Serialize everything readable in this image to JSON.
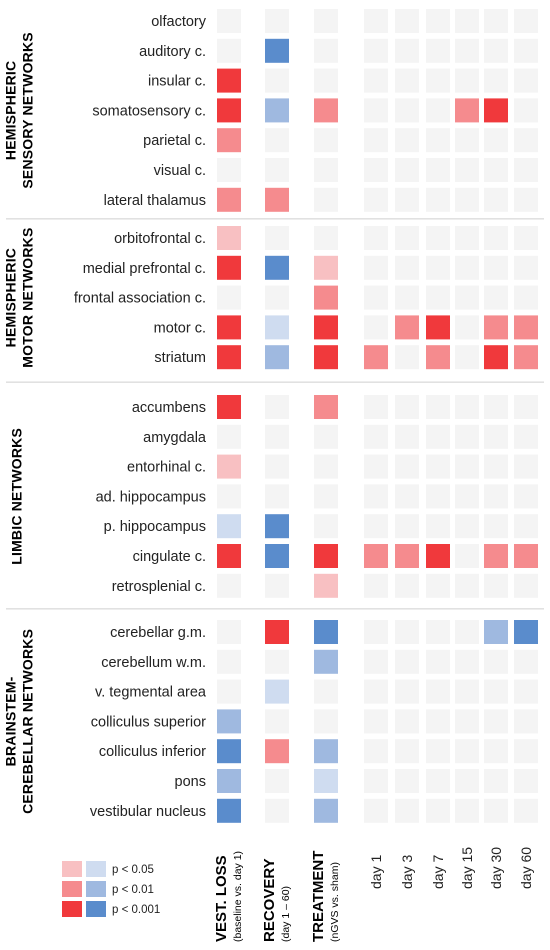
{
  "chart_data": {
    "type": "heatmap",
    "columns": [
      {
        "label": "VEST. LOSS",
        "sublabel": "(baseline vs. day 1)",
        "style": "bold"
      },
      {
        "label": "RECOVERY",
        "sublabel": "(day 1 – 60)",
        "style": "bold"
      },
      {
        "label": "TREATMENT",
        "sublabel": "(nGVS vs. sham)",
        "style": "bold"
      },
      {
        "label": "day 1",
        "sublabel": "",
        "style": "normal"
      },
      {
        "label": "day 3",
        "sublabel": "",
        "style": "normal"
      },
      {
        "label": "day 7",
        "sublabel": "",
        "style": "normal"
      },
      {
        "label": "day 15",
        "sublabel": "",
        "style": "normal"
      },
      {
        "label": "day 30",
        "sublabel": "",
        "style": "normal"
      },
      {
        "label": "day 60",
        "sublabel": "",
        "style": "normal"
      }
    ],
    "groups": [
      {
        "label": [
          "HEMISPHERIC",
          "SENSORY NETWORKS"
        ],
        "rows": [
          {
            "label": "olfactory",
            "values": [
              0,
              0,
              0,
              0,
              0,
              0,
              0,
              0,
              0
            ]
          },
          {
            "label": "auditory c.",
            "values": [
              0,
              -3,
              0,
              0,
              0,
              0,
              0,
              0,
              0
            ]
          },
          {
            "label": "insular c.",
            "values": [
              3,
              0,
              0,
              0,
              0,
              0,
              0,
              0,
              0
            ]
          },
          {
            "label": "somatosensory c.",
            "values": [
              3,
              -2,
              2,
              0,
              0,
              0,
              2,
              3,
              0
            ]
          },
          {
            "label": "parietal c.",
            "values": [
              2,
              0,
              0,
              0,
              0,
              0,
              0,
              0,
              0
            ]
          },
          {
            "label": "visual c.",
            "values": [
              0,
              0,
              0,
              0,
              0,
              0,
              0,
              0,
              0
            ]
          },
          {
            "label": "lateral thalamus",
            "values": [
              2,
              2,
              0,
              0,
              0,
              0,
              0,
              0,
              0
            ]
          }
        ]
      },
      {
        "label": [
          "HEMISPHERIC",
          "MOTOR NETWORKS"
        ],
        "rows": [
          {
            "label": "orbitofrontal c.",
            "values": [
              1,
              0,
              0,
              0,
              0,
              0,
              0,
              0,
              0
            ]
          },
          {
            "label": "medial prefrontal c.",
            "values": [
              3,
              -3,
              1,
              0,
              0,
              0,
              0,
              0,
              0
            ]
          },
          {
            "label": "frontal association c.",
            "values": [
              0,
              0,
              2,
              0,
              0,
              0,
              0,
              0,
              0
            ]
          },
          {
            "label": "motor c.",
            "values": [
              3,
              -1,
              3,
              0,
              2,
              3,
              0,
              2,
              2
            ]
          },
          {
            "label": "striatum",
            "values": [
              3,
              -2,
              3,
              2,
              0,
              2,
              0,
              3,
              2
            ]
          }
        ]
      },
      {
        "label": [
          "LIMBIC NETWORKS"
        ],
        "rows": [
          {
            "label": "accumbens",
            "values": [
              3,
              0,
              2,
              0,
              0,
              0,
              0,
              0,
              0
            ]
          },
          {
            "label": "amygdala",
            "values": [
              0,
              0,
              0,
              0,
              0,
              0,
              0,
              0,
              0
            ]
          },
          {
            "label": "entorhinal c.",
            "values": [
              1,
              0,
              0,
              0,
              0,
              0,
              0,
              0,
              0
            ]
          },
          {
            "label": "ad. hippocampus",
            "values": [
              0,
              0,
              0,
              0,
              0,
              0,
              0,
              0,
              0
            ]
          },
          {
            "label": "p. hippocampus",
            "values": [
              -1,
              -3,
              0,
              0,
              0,
              0,
              0,
              0,
              0
            ]
          },
          {
            "label": "cingulate c.",
            "values": [
              3,
              -3,
              3,
              2,
              2,
              3,
              0,
              2,
              2
            ]
          },
          {
            "label": "retrosplenial c.",
            "values": [
              0,
              0,
              1,
              0,
              0,
              0,
              0,
              0,
              0
            ]
          }
        ]
      },
      {
        "label": [
          "BRAINSTEM-",
          "CEREBELLAR NETWORKS"
        ],
        "rows": [
          {
            "label": "cerebellar g.m.",
            "values": [
              0,
              3,
              -3,
              0,
              0,
              0,
              0,
              -2,
              -3
            ]
          },
          {
            "label": "cerebellum w.m.",
            "values": [
              0,
              0,
              -2,
              0,
              0,
              0,
              0,
              0,
              0
            ]
          },
          {
            "label": "v. tegmental area",
            "values": [
              0,
              -1,
              0,
              0,
              0,
              0,
              0,
              0,
              0
            ]
          },
          {
            "label": "colliculus superior",
            "values": [
              -2,
              0,
              0,
              0,
              0,
              0,
              0,
              0,
              0
            ]
          },
          {
            "label": "colliculus inferior",
            "values": [
              -3,
              2,
              -2,
              0,
              0,
              0,
              0,
              0,
              0
            ]
          },
          {
            "label": "pons",
            "values": [
              -2,
              0,
              -1,
              0,
              0,
              0,
              0,
              0,
              0
            ]
          },
          {
            "label": "vestibular nucleus",
            "values": [
              -3,
              0,
              -2,
              0,
              0,
              0,
              0,
              0,
              0
            ]
          }
        ]
      }
    ],
    "legend": {
      "entries": [
        {
          "label": "p < 0.05",
          "level": 1
        },
        {
          "label": "p < 0.01",
          "level": 2
        },
        {
          "label": "p < 0.001",
          "level": 3
        }
      ],
      "placement": "bottom-left"
    },
    "colors": {
      "neutral": "#f4f4f4",
      "pos1": "#f8c0c2",
      "pos2": "#f58b8e",
      "pos3": "#f0393c",
      "neg1": "#cfdcf0",
      "neg2": "#9fb9e0",
      "neg3": "#5a8ccc"
    }
  }
}
